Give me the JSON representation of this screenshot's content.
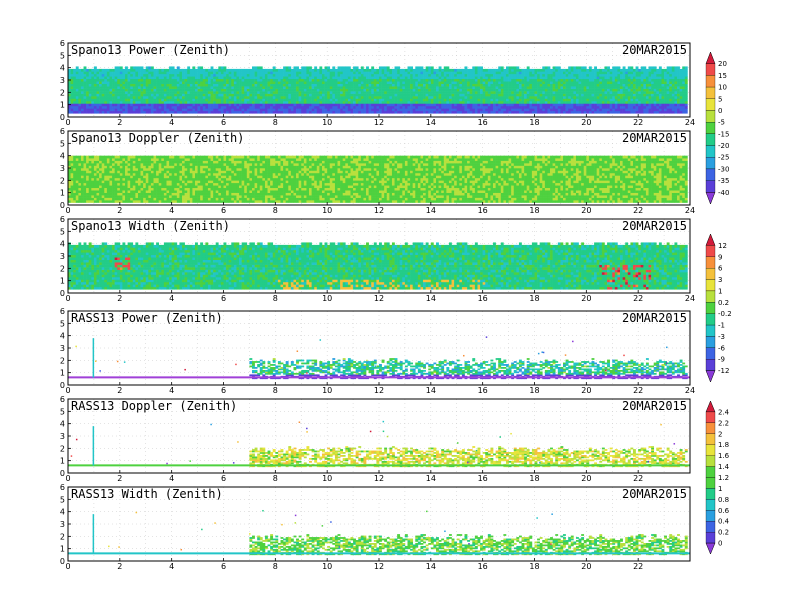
{
  "figure": {
    "date": "20MAR2015"
  },
  "chart_data": [
    {
      "type": "heatmap",
      "title": "Spano13 Power (Zenith)",
      "date_label": "20MAR2015",
      "xlim": [
        0,
        24
      ],
      "ylim": [
        0,
        6
      ],
      "x_ticks": [
        0,
        2,
        4,
        6,
        8,
        10,
        12,
        14,
        16,
        18,
        20,
        22,
        24
      ],
      "y_ticks": [
        0,
        1,
        2,
        3,
        4,
        5,
        6
      ],
      "grid": true,
      "coverage": {
        "x_start": 0.0,
        "x_end": 23.9,
        "y_min": 0.3,
        "y_max_typical": 3.9
      },
      "value_range": [
        -45,
        22
      ],
      "typical_value": -20,
      "colorbar": {
        "ticks": [
          20,
          15,
          10,
          5,
          0,
          -5,
          -15,
          -20,
          -25,
          -30,
          -35,
          -40
        ]
      }
    },
    {
      "type": "heatmap",
      "title": "Spano13 Doppler (Zenith)",
      "date_label": "20MAR2015",
      "xlim": [
        0,
        24
      ],
      "ylim": [
        0,
        6
      ],
      "x_ticks": [
        0,
        2,
        4,
        6,
        8,
        10,
        12,
        14,
        16,
        18,
        20,
        22,
        24
      ],
      "y_ticks": [
        0,
        1,
        2,
        3,
        4,
        5,
        6
      ],
      "grid": true,
      "coverage": {
        "x_start": 0.0,
        "x_end": 23.9,
        "y_min": 0.2,
        "y_max_typical": 3.9
      },
      "typical_value": 0
    },
    {
      "type": "heatmap",
      "title": "Spano13 Width (Zenith)",
      "date_label": "20MAR2015",
      "xlim": [
        0,
        24
      ],
      "ylim": [
        0,
        6
      ],
      "x_ticks": [
        0,
        2,
        4,
        6,
        8,
        10,
        12,
        14,
        16,
        18,
        20,
        22,
        24
      ],
      "y_ticks": [
        0,
        1,
        2,
        3,
        4,
        5,
        6
      ],
      "grid": true,
      "coverage": {
        "x_start": 0.0,
        "x_end": 23.9,
        "y_min": 0.3,
        "y_max_typical": 3.9
      },
      "value_range": [
        -14,
        14
      ],
      "typical_value": -1,
      "colorbar": {
        "ticks": [
          12,
          9,
          6,
          3,
          1,
          0.2,
          -0.2,
          -1,
          -3,
          -6,
          -9,
          -12
        ]
      }
    },
    {
      "type": "heatmap",
      "title": "RASS13 Power (Zenith)",
      "date_label": "20MAR2015",
      "xlim": [
        0,
        24
      ],
      "ylim": [
        0,
        6
      ],
      "x_ticks": [
        0,
        2,
        4,
        6,
        8,
        10,
        12,
        14,
        16,
        18,
        20,
        22,
        24
      ],
      "y_ticks": [
        0,
        1,
        2,
        3,
        4,
        5,
        6
      ],
      "grid": true,
      "coverage": {
        "x_start": 7.0,
        "x_end": 23.9,
        "y_min": 0.5,
        "y_max_typical": 1.9
      },
      "spike_hour": 0.95
    },
    {
      "type": "heatmap",
      "title": "RASS13 Doppler (Zenith)",
      "date_label": "20MAR2015",
      "xlim": [
        0,
        24
      ],
      "ylim": [
        0,
        6
      ],
      "x_ticks": [
        0,
        2,
        4,
        6,
        8,
        10,
        12,
        14,
        16,
        18,
        20,
        22
      ],
      "y_ticks": [
        0,
        1,
        2,
        3,
        4,
        5,
        6
      ],
      "grid": true,
      "coverage": {
        "x_start": 7.0,
        "x_end": 23.9,
        "y_min": 0.5,
        "y_max_typical": 1.9
      },
      "spike_hour": 0.95,
      "value_range": [
        -0.1,
        2.5
      ],
      "typical_value": 1.1,
      "colorbar": {
        "ticks": [
          2.4,
          2.2,
          2,
          1.8,
          1.6,
          1.4,
          1.2,
          1,
          0.8,
          0.6,
          0.4,
          0.2,
          0
        ]
      }
    },
    {
      "type": "heatmap",
      "title": "RASS13 Width (Zenith)",
      "date_label": "20MAR2015",
      "xlim": [
        0,
        24
      ],
      "ylim": [
        0,
        6
      ],
      "x_ticks": [
        0,
        2,
        4,
        6,
        8,
        10,
        12,
        14,
        16,
        18,
        20,
        22
      ],
      "y_ticks": [
        0,
        1,
        2,
        3,
        4,
        5,
        6
      ],
      "grid": true,
      "coverage": {
        "x_start": 7.0,
        "x_end": 23.9,
        "y_min": 0.5,
        "y_max_typical": 1.9
      },
      "spike_hour": 0.95
    }
  ]
}
